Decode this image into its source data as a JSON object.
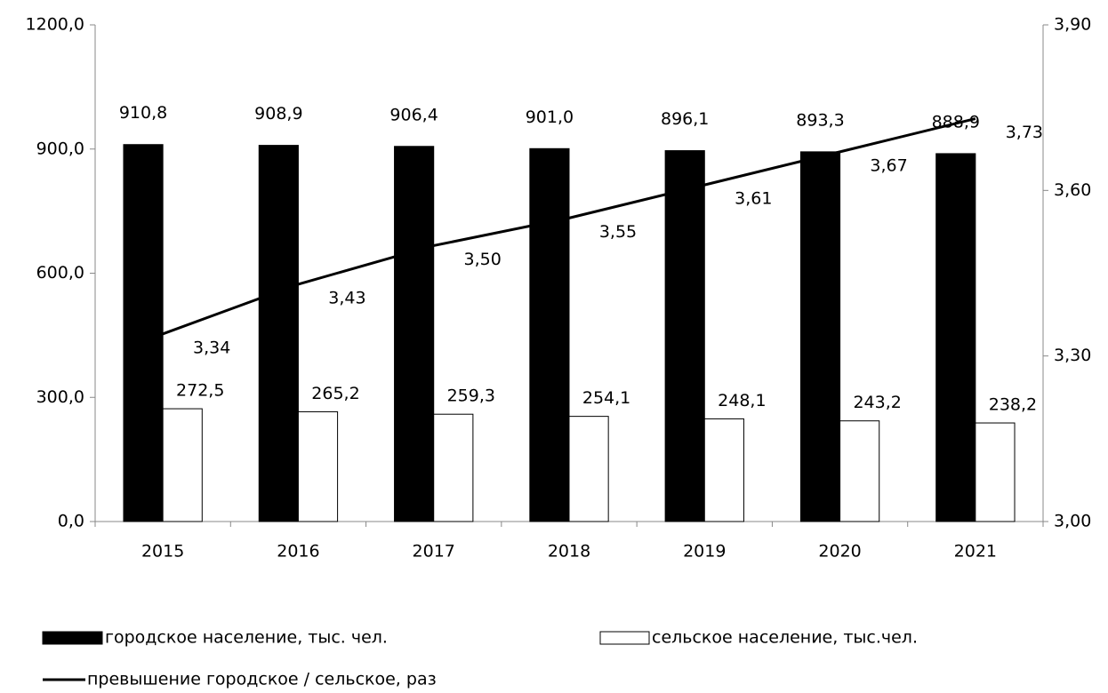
{
  "chart_data": {
    "type": "bar",
    "categories": [
      "2015",
      "2016",
      "2017",
      "2018",
      "2019",
      "2020",
      "2021"
    ],
    "series": [
      {
        "name": "городское население, тыс. чел.",
        "type": "bar",
        "color": "#000000",
        "values": [
          910.8,
          908.9,
          906.4,
          901.0,
          896.1,
          893.3,
          888.9
        ],
        "value_labels": [
          "910,8",
          "908,9",
          "906,4",
          "901,0",
          "896,1",
          "893,3",
          "888,9"
        ]
      },
      {
        "name": "сельское население, тыс.чел.",
        "type": "bar",
        "color": "#ffffff",
        "values": [
          272.5,
          265.2,
          259.3,
          254.1,
          248.1,
          243.2,
          238.2
        ],
        "value_labels": [
          "272,5",
          "265,2",
          "259,3",
          "254,1",
          "248,1",
          "243,2",
          "238,2"
        ]
      },
      {
        "name": "превышение городское / сельское, раз",
        "type": "line",
        "color": "#000000",
        "axis": "y2",
        "values": [
          3.34,
          3.43,
          3.5,
          3.55,
          3.61,
          3.67,
          3.73
        ],
        "value_labels": [
          "3,34",
          "3,43",
          "3,50",
          "3,55",
          "3,61",
          "3,67",
          "3,73"
        ]
      }
    ],
    "ylim": [
      0,
      1200
    ],
    "yticks": [
      {
        "value": 0,
        "label": "0,0"
      },
      {
        "value": 300,
        "label": "300,0"
      },
      {
        "value": 600,
        "label": "600,0"
      },
      {
        "value": 900,
        "label": "900,0"
      },
      {
        "value": 1200,
        "label": "1200,0"
      }
    ],
    "y2lim": [
      3.0,
      3.9
    ],
    "y2ticks": [
      {
        "value": 3.0,
        "label": "3,00"
      },
      {
        "value": 3.3,
        "label": "3,30"
      },
      {
        "value": 3.6,
        "label": "3,60"
      },
      {
        "value": 3.9,
        "label": "3,90"
      }
    ],
    "grid": false,
    "legend": "bottom"
  }
}
